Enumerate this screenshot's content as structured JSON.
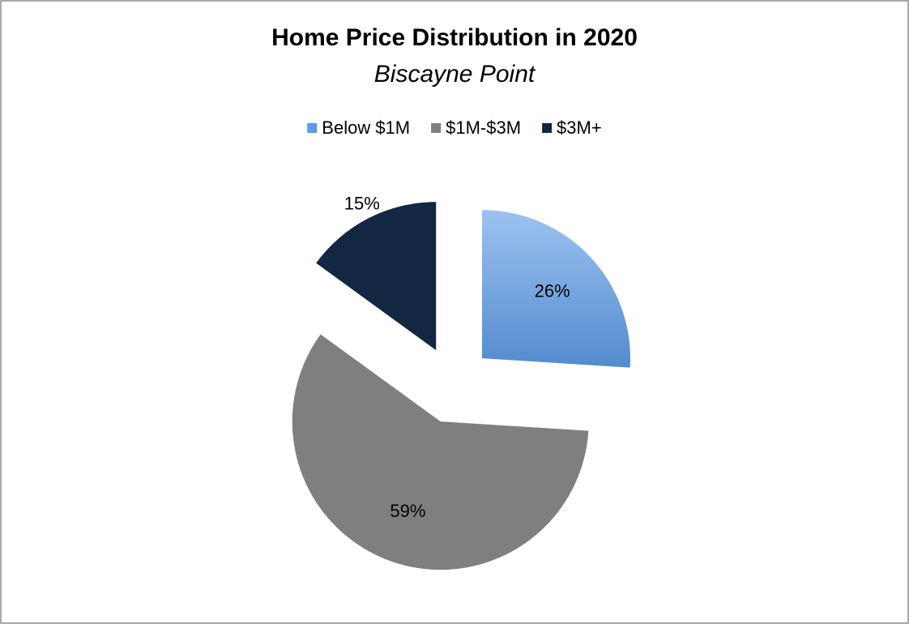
{
  "chart_data": {
    "type": "pie",
    "title": "Home Price Distribution in 2020",
    "subtitle": "Biscayne Point",
    "categories": [
      "Below $1M",
      "$1M-$3M",
      "$3M+"
    ],
    "values": [
      26,
      59,
      15
    ],
    "value_labels": [
      "26%",
      "59%",
      "15%"
    ],
    "colors": [
      "#5b9ae6",
      "#7f7f7f",
      "#132642"
    ],
    "exploded": true,
    "legend": "top"
  }
}
